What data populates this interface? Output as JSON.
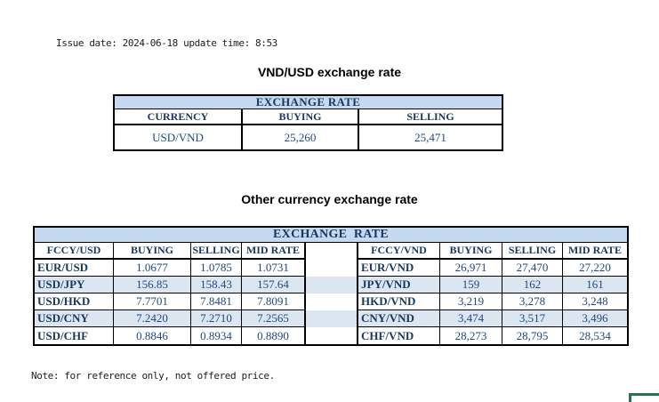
{
  "meta": {
    "issue_line": "Issue date: 2024-06-18 update time: 8:53",
    "note_line": "Note: for reference only, not offered price."
  },
  "colors": {
    "header_bg": "#c5d9f1",
    "stripe_bg": "#dce6f1",
    "header_text": "#17375e",
    "value_text": "#1f497d",
    "border": "#000000",
    "corner_green": "#2a7150"
  },
  "usd_table": {
    "title": "VND/USD exchange rate",
    "header": "EXCHANGE RATE",
    "columns": [
      "CURRENCY",
      "BUYING",
      "SELLING"
    ],
    "row": {
      "currency": "USD/VND",
      "buying": "25,260",
      "selling": "25,471"
    }
  },
  "other_table": {
    "title": "Other currency exchange rate",
    "header": "EXCHANGE  RATE",
    "left": {
      "columns": [
        "FCCY/USD",
        "BUYING",
        "SELLING",
        "MID RATE"
      ],
      "rows": [
        {
          "pair": "EUR/USD",
          "buying": "1.0677",
          "selling": "1.0785",
          "mid": "1.0731"
        },
        {
          "pair": "USD/JPY",
          "buying": "156.85",
          "selling": "158.43",
          "mid": "157.64"
        },
        {
          "pair": "USD/HKD",
          "buying": "7.7701",
          "selling": "7.8481",
          "mid": "7.8091"
        },
        {
          "pair": "USD/CNY",
          "buying": "7.2420",
          "selling": "7.2710",
          "mid": "7.2565"
        },
        {
          "pair": "USD/CHF",
          "buying": "0.8846",
          "selling": "0.8934",
          "mid": "0.8890"
        }
      ]
    },
    "right": {
      "columns": [
        "FCCY/VND",
        "BUYING",
        "SELLING",
        "MID RATE"
      ],
      "rows": [
        {
          "pair": "EUR/VND",
          "buying": "26,971",
          "selling": "27,470",
          "mid": "27,220"
        },
        {
          "pair": "JPY/VND",
          "buying": "159",
          "selling": "162",
          "mid": "161"
        },
        {
          "pair": "HKD/VND",
          "buying": "3,219",
          "selling": "3,278",
          "mid": "3,248"
        },
        {
          "pair": "CNY/VND",
          "buying": "3,474",
          "selling": "3,517",
          "mid": "3,496"
        },
        {
          "pair": "CHF/VND",
          "buying": "28,273",
          "selling": "28,795",
          "mid": "28,534"
        }
      ]
    }
  }
}
